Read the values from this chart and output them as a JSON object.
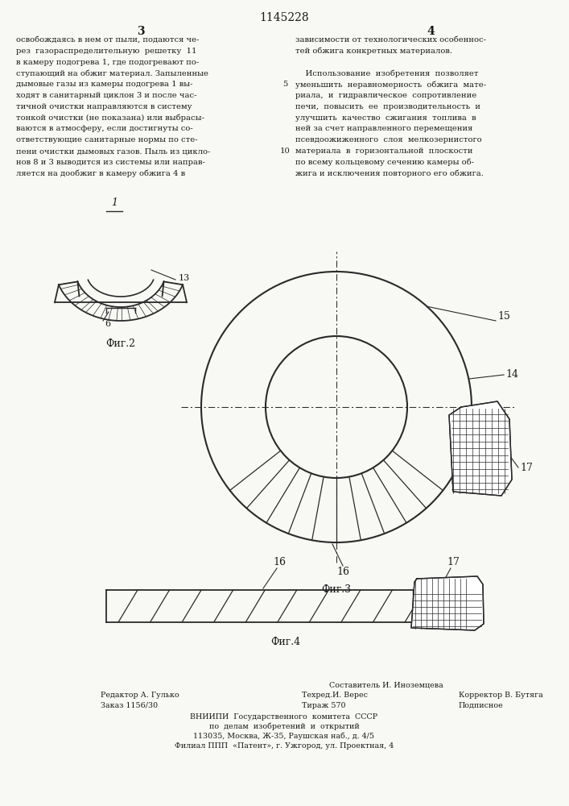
{
  "patent_number": "1145228",
  "col_left_num": "3",
  "col_right_num": "4",
  "text_left": [
    "освобождаясь в нем от пыли, подаются че-",
    "рез  газораспределительную  решетку  11",
    "в камеру подогрева 1, где подогревают по-",
    "ступающий на обжиг материал. Запыленные",
    "дымовые газы из камеры подогрева 1 вы-",
    "ходят в санитарный циклон 3 и после час-",
    "тичной очистки направляются в систему",
    "тонкой очистки (не показана) или выбрасы-",
    "ваются в атмосферу, если достигнуты со-",
    "ответствующие санитарные нормы по сте-",
    "пени очистки дымовых газов. Пыль из цикло-",
    "нов 8 и 3 выводится из системы или направ-",
    "ляется на дообжиг в камеру обжига 4 в"
  ],
  "text_right": [
    "зависимости от технологических особеннос-",
    "тей обжига конкретных материалов.",
    "",
    "    Использование  изобретения  позволяет",
    "уменьшить  неравномерность  обжига  мате-",
    "риала,  и  гидравлическое  сопротивление",
    "печи,  повысить  ее  производительность  и",
    "улучшить  качество  сжигания  топлива  в",
    "ней за счет направленного перемещения",
    "псевдоожиженного  слоя  мелкозернистого",
    "материала  в  горизонтальной  плоскости",
    "по всему кольцевому сечению камеры об-",
    "жига и исключения повторного его обжига."
  ],
  "fig2_label": "Фиг.2",
  "fig3_label": "Фиг.3",
  "fig4_label": "Фиг.4",
  "label_1": "1",
  "label_6": "6",
  "label_13": "13",
  "label_14": "14",
  "label_15": "15",
  "label_16": "16",
  "label_17": "17",
  "footer_col1": [
    "Редактор А. Гулько",
    "Заказ 1156/30"
  ],
  "footer_col2": [
    "Составитель И. Иноземцева",
    "Техред.И. Верес",
    "Тираж 570"
  ],
  "footer_col3": [
    "Корректор В. Бутяга",
    "Подписное"
  ],
  "footer_center": [
    "ВНИИПИ  Государственного  комитета  СССР",
    "по  делам  изобретений  и  открытий",
    "113035, Москва, Ж-35, Раушская наб., д. 4/5",
    "Филиал ППП  «Патент», г. Ужгород, ул. Проектная, 4"
  ],
  "bg_color": "#f8f8f5",
  "line_color": "#2a2a2a",
  "text_color": "#1a1a1a"
}
